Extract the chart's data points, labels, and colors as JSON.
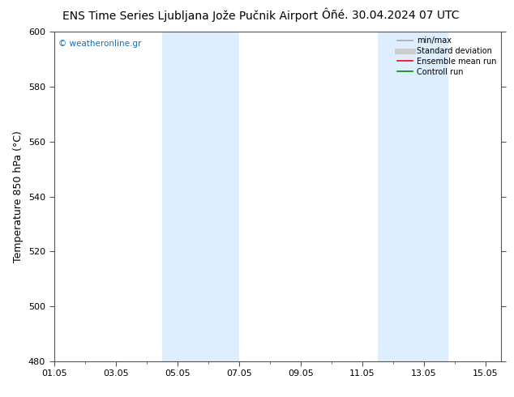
{
  "title_left": "ENS Time Series Ljubljana Jože Pučnik Airport",
  "title_right": "Ôñé. 30.04.2024 07 UTC",
  "ylabel": "Temperature 850 hPa (°C)",
  "ylim": [
    480,
    600
  ],
  "yticks": [
    480,
    500,
    520,
    540,
    560,
    580,
    600
  ],
  "xtick_labels": [
    "01.05",
    "03.05",
    "05.05",
    "07.05",
    "09.05",
    "11.05",
    "13.05",
    "15.05"
  ],
  "xtick_positions": [
    0,
    2,
    4,
    6,
    8,
    10,
    12,
    14
  ],
  "xlim": [
    0,
    14.5
  ],
  "shaded_bands": [
    {
      "x_start": 3.5,
      "x_end": 6.0,
      "color": "#ddeeff"
    },
    {
      "x_start": 10.5,
      "x_end": 12.8,
      "color": "#ddeeff"
    }
  ],
  "watermark": "© weatheronline.gr",
  "watermark_color": "#1a6cb0",
  "bg_color": "#ffffff",
  "plot_bg_color": "#ffffff",
  "border_color": "#555555",
  "legend_items": [
    {
      "label": "min/max",
      "color": "#aaaaaa",
      "lw": 1.2,
      "style": "-"
    },
    {
      "label": "Standard deviation",
      "color": "#cccccc",
      "lw": 5,
      "style": "-"
    },
    {
      "label": "Ensemble mean run",
      "color": "#ff0000",
      "lw": 1.2,
      "style": "-"
    },
    {
      "label": "Controll run",
      "color": "#008800",
      "lw": 1.2,
      "style": "-"
    }
  ],
  "title_fontsize": 10,
  "axis_fontsize": 9,
  "tick_fontsize": 8
}
